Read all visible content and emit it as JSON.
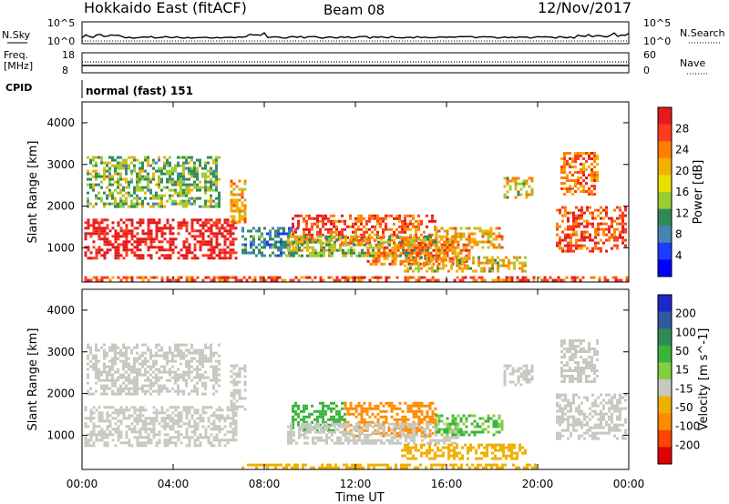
{
  "header": {
    "station": "Hokkaido East (fitACF)",
    "beam": "Beam 08",
    "date": "12/Nov/2017"
  },
  "noise_panel": {
    "left_label": "N.Sky",
    "right_label": "N.Search",
    "ticks": [
      "10^5",
      "10^0"
    ],
    "right_ticks": [
      "10^5",
      "10^0"
    ]
  },
  "freq_panel": {
    "label_line1": "Freq.",
    "label_line2": "[MHz]",
    "ticks": [
      "18",
      "8"
    ],
    "right_label": "Nave",
    "right_ticks": [
      "60",
      "0"
    ]
  },
  "cpid_panel": {
    "label": "CPID",
    "mode_text": "normal (fast) 151"
  },
  "colors": {
    "gray_scatter": "#c8c8c0",
    "line": "#000000"
  },
  "chart_data": [
    {
      "type": "heatmap",
      "name": "power",
      "ylabel": "Slant Range [km]",
      "ylim": [
        180,
        4500
      ],
      "yticks": [
        "4000",
        "3000",
        "2000",
        "1000"
      ],
      "xlim": [
        0,
        24
      ],
      "colorbar": {
        "label": "Power [dB]",
        "ticks": [
          "28",
          "24",
          "20",
          "16",
          "12",
          "8",
          "4"
        ],
        "colors": [
          "#e41a1c",
          "#ff3b1e",
          "#ff7f00",
          "#f4b000",
          "#e8e000",
          "#9acd32",
          "#2e8b57",
          "#4682b4",
          "#1e3cff",
          "#0000ff"
        ]
      },
      "regions": [
        {
          "t0": 0.1,
          "t1": 6.8,
          "r0": 750,
          "r1": 1700,
          "level": 28
        },
        {
          "t0": 0.2,
          "t1": 6.0,
          "r0": 2000,
          "r1": 3200,
          "level": 14
        },
        {
          "t0": 6.5,
          "t1": 7.2,
          "r0": 1600,
          "r1": 2700,
          "level": 20
        },
        {
          "t0": 7.0,
          "t1": 9.5,
          "r0": 800,
          "r1": 1500,
          "level": 10
        },
        {
          "t0": 9.2,
          "t1": 15.5,
          "r0": 1100,
          "r1": 1800,
          "level": 24
        },
        {
          "t0": 9.0,
          "t1": 16.5,
          "r0": 800,
          "r1": 1300,
          "level": 16
        },
        {
          "t0": 12.5,
          "t1": 17.0,
          "r0": 600,
          "r1": 1100,
          "level": 22
        },
        {
          "t0": 14.0,
          "t1": 19.5,
          "r0": 450,
          "r1": 800,
          "level": 18
        },
        {
          "t0": 15.5,
          "t1": 18.5,
          "r0": 1000,
          "r1": 1500,
          "level": 20
        },
        {
          "t0": 18.5,
          "t1": 19.8,
          "r0": 2200,
          "r1": 2700,
          "level": 18
        },
        {
          "t0": 20.8,
          "t1": 23.9,
          "r0": 900,
          "r1": 2000,
          "level": 24
        },
        {
          "t0": 21.0,
          "t1": 22.6,
          "r0": 2300,
          "r1": 3300,
          "level": 22
        },
        {
          "t0": 0.1,
          "t1": 23.9,
          "r0": 200,
          "r1": 320,
          "level": 24
        }
      ]
    },
    {
      "type": "heatmap",
      "name": "velocity",
      "ylabel": "Slant Range [km]",
      "ylim": [
        180,
        4500
      ],
      "yticks": [
        "4000",
        "3000",
        "2000",
        "1000"
      ],
      "xlim": [
        0,
        24
      ],
      "colorbar": {
        "label": "Velocity [m s^-1]",
        "ticks": [
          "200",
          "100",
          "50",
          "15",
          "-15",
          "-50",
          "-100",
          "-200"
        ],
        "colors": [
          "#1e28c8",
          "#2e5aa0",
          "#2e8b57",
          "#3cb43c",
          "#80d040",
          "#c8c8c0",
          "#f0b000",
          "#ff8c00",
          "#ff4500",
          "#e00000"
        ]
      },
      "regions": [
        {
          "t0": 0.1,
          "t1": 6.8,
          "r0": 750,
          "r1": 1700,
          "level": 0
        },
        {
          "t0": 0.2,
          "t1": 6.0,
          "r0": 2000,
          "r1": 3200,
          "level": 0
        },
        {
          "t0": 6.5,
          "t1": 7.2,
          "r0": 1600,
          "r1": 2700,
          "level": 0
        },
        {
          "t0": 9.2,
          "t1": 11.5,
          "r0": 1100,
          "r1": 1800,
          "level": 40
        },
        {
          "t0": 11.5,
          "t1": 15.5,
          "r0": 1000,
          "r1": 1800,
          "level": -60
        },
        {
          "t0": 9.0,
          "t1": 16.5,
          "r0": 800,
          "r1": 1300,
          "level": 0
        },
        {
          "t0": 15.5,
          "t1": 18.5,
          "r0": 1000,
          "r1": 1500,
          "level": 30
        },
        {
          "t0": 14.0,
          "t1": 19.5,
          "r0": 450,
          "r1": 800,
          "level": -40
        },
        {
          "t0": 18.5,
          "t1": 19.8,
          "r0": 2200,
          "r1": 2700,
          "level": 0
        },
        {
          "t0": 20.8,
          "t1": 23.9,
          "r0": 900,
          "r1": 2000,
          "level": 0
        },
        {
          "t0": 21.0,
          "t1": 22.6,
          "r0": 2300,
          "r1": 3300,
          "level": 0
        },
        {
          "t0": 7.0,
          "t1": 20.0,
          "r0": 200,
          "r1": 320,
          "level": -40
        }
      ]
    }
  ],
  "xaxis": {
    "label": "Time UT",
    "ticks": [
      "00:00",
      "04:00",
      "08:00",
      "12:00",
      "16:00",
      "20:00",
      "00:00"
    ]
  }
}
